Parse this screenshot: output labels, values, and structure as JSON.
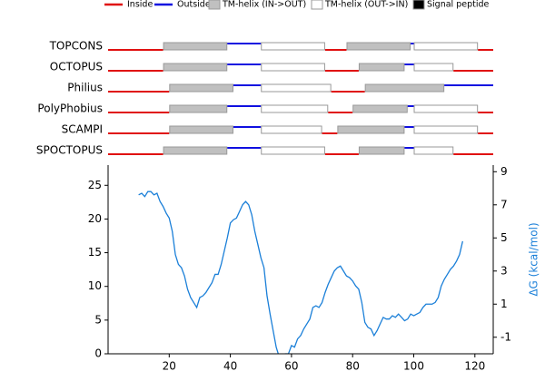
{
  "chart_data": {
    "type": "line",
    "legend": [
      {
        "label": "Inside",
        "color": "#e01010",
        "shape": "line"
      },
      {
        "label": "Outside",
        "color": "#1010e0",
        "shape": "line"
      },
      {
        "label": "TM-helix (IN->OUT)",
        "color": "#c0c0c0",
        "shape": "box"
      },
      {
        "label": "TM-helix (OUT->IN)",
        "color": "#ffffff",
        "shape": "box"
      },
      {
        "label": "Signal peptide",
        "color": "#000000",
        "shape": "box"
      }
    ],
    "tracks": [
      {
        "label": "TOPCONS",
        "segments": [
          [
            0,
            18,
            0
          ],
          [
            18,
            39,
            2
          ],
          [
            39,
            50,
            1
          ],
          [
            50,
            71,
            3
          ],
          [
            71,
            78,
            0
          ],
          [
            78,
            99,
            2
          ],
          [
            99,
            100,
            1
          ],
          [
            100,
            121,
            3
          ],
          [
            121,
            126,
            0
          ]
        ]
      },
      {
        "label": "OCTOPUS",
        "segments": [
          [
            0,
            18,
            0
          ],
          [
            18,
            39,
            2
          ],
          [
            39,
            50,
            1
          ],
          [
            50,
            71,
            3
          ],
          [
            71,
            82,
            0
          ],
          [
            82,
            97,
            2
          ],
          [
            97,
            100,
            1
          ],
          [
            100,
            113,
            3
          ],
          [
            113,
            126,
            0
          ]
        ]
      },
      {
        "label": "Philius",
        "segments": [
          [
            0,
            20,
            0
          ],
          [
            20,
            41,
            2
          ],
          [
            41,
            50,
            1
          ],
          [
            50,
            73,
            3
          ],
          [
            73,
            84,
            0
          ],
          [
            84,
            110,
            2
          ],
          [
            110,
            126,
            1
          ]
        ]
      },
      {
        "label": "PolyPhobius",
        "segments": [
          [
            0,
            20,
            0
          ],
          [
            20,
            39,
            2
          ],
          [
            39,
            50,
            1
          ],
          [
            50,
            72,
            3
          ],
          [
            72,
            80,
            0
          ],
          [
            80,
            98,
            2
          ],
          [
            98,
            100,
            1
          ],
          [
            100,
            121,
            3
          ],
          [
            121,
            126,
            0
          ]
        ]
      },
      {
        "label": "SCAMPI",
        "segments": [
          [
            0,
            20,
            0
          ],
          [
            20,
            41,
            2
          ],
          [
            41,
            50,
            1
          ],
          [
            50,
            70,
            3
          ],
          [
            70,
            75,
            0
          ],
          [
            75,
            97,
            2
          ],
          [
            97,
            100,
            1
          ],
          [
            100,
            121,
            3
          ],
          [
            121,
            126,
            0
          ]
        ]
      },
      {
        "label": "SPOCTOPUS",
        "segments": [
          [
            0,
            18,
            0
          ],
          [
            18,
            39,
            2
          ],
          [
            39,
            50,
            1
          ],
          [
            50,
            71,
            3
          ],
          [
            71,
            82,
            0
          ],
          [
            82,
            97,
            2
          ],
          [
            97,
            100,
            1
          ],
          [
            100,
            113,
            3
          ],
          [
            113,
            126,
            0
          ]
        ]
      }
    ],
    "x": [
      10,
      11,
      12,
      13,
      14,
      15,
      16,
      17,
      18,
      19,
      20,
      21,
      22,
      23,
      24,
      25,
      26,
      27,
      28,
      29,
      30,
      31,
      32,
      33,
      34,
      35,
      36,
      37,
      38,
      39,
      40,
      41,
      42,
      43,
      44,
      45,
      46,
      47,
      48,
      49,
      50,
      51,
      52,
      53,
      54,
      55,
      56,
      57,
      58,
      59,
      60,
      61,
      62,
      63,
      64,
      65,
      66,
      67,
      68,
      69,
      70,
      71,
      72,
      73,
      74,
      75,
      76,
      77,
      78,
      79,
      80,
      81,
      82,
      83,
      84,
      85,
      86,
      87,
      88,
      89,
      90,
      91,
      92,
      93,
      94,
      95,
      96,
      97,
      98,
      99,
      100,
      101,
      102,
      103,
      104,
      105,
      106,
      107,
      108,
      109,
      110,
      111,
      112,
      113,
      114,
      115,
      116
    ],
    "series": [
      {
        "color": "#1a7fd8",
        "axis": "y2",
        "values": [
          7.6,
          7.7,
          7.5,
          7.8,
          7.8,
          7.6,
          7.7,
          7.2,
          6.9,
          6.5,
          6.2,
          5.4,
          4.0,
          3.4,
          3.2,
          2.7,
          1.9,
          1.4,
          1.1,
          0.8,
          1.4,
          1.5,
          1.7,
          2.0,
          2.3,
          2.8,
          2.8,
          3.4,
          4.2,
          5.0,
          5.9,
          6.1,
          6.2,
          6.6,
          7.0,
          7.2,
          7.0,
          6.4,
          5.4,
          4.6,
          3.8,
          3.2,
          1.5,
          0.4,
          -0.6,
          -1.6,
          -2.2,
          -2.4,
          -2.0,
          -2.0,
          -1.5,
          -1.6,
          -1.1,
          -0.9,
          -0.5,
          -0.2,
          0.1,
          0.8,
          0.9,
          0.8,
          1.1,
          1.7,
          2.2,
          2.6,
          3.0,
          3.2,
          3.3,
          3.0,
          2.7,
          2.6,
          2.4,
          2.1,
          1.9,
          1.1,
          -0.1,
          -0.4,
          -0.5,
          -0.9,
          -0.6,
          -0.2,
          0.2,
          0.1,
          0.1,
          0.3,
          0.2,
          0.4,
          0.2,
          0.0,
          0.1,
          0.4,
          0.3,
          0.4,
          0.5,
          0.8,
          1.0,
          1.0,
          1.0,
          1.1,
          1.4,
          2.1,
          2.5,
          2.8,
          3.1,
          3.3,
          3.6,
          4.0,
          4.8
        ]
      }
    ],
    "xlim": [
      0,
      126
    ],
    "xticks": [
      20,
      40,
      60,
      80,
      100,
      120
    ],
    "ylim": [
      0,
      28
    ],
    "yticks": [
      0,
      5,
      10,
      15,
      20,
      25
    ],
    "y2lim": [
      -2,
      9.4
    ],
    "y2ticks": [
      -1,
      1,
      3,
      5,
      7,
      9
    ],
    "y2label": "ΔG (kcal/mol)"
  }
}
